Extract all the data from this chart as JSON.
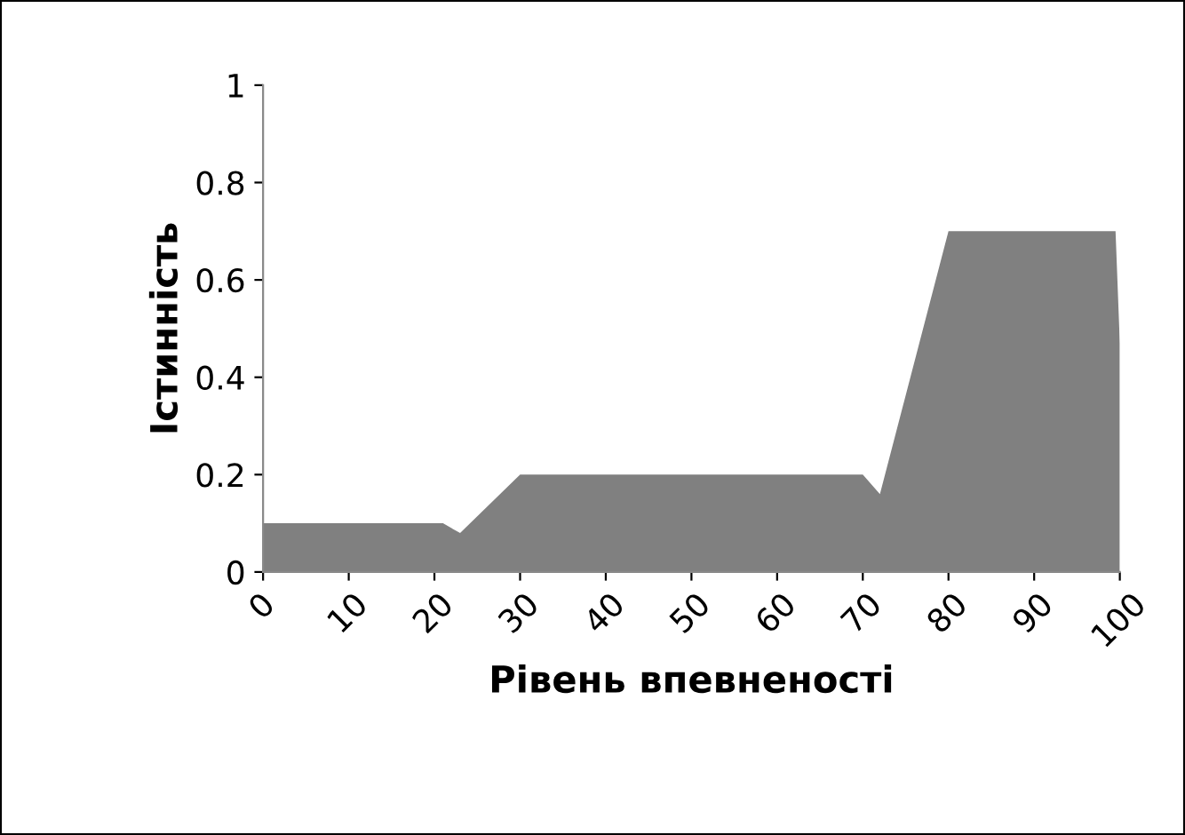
{
  "chart_data": {
    "type": "area",
    "xlabel": "Рівень впевненості",
    "ylabel": "Істинність",
    "x": [
      0,
      21,
      23,
      30,
      70,
      72,
      80,
      99.5,
      100
    ],
    "series": [
      {
        "color": "#808080",
        "values": [
          0.1,
          0.1,
          0.08,
          0.2,
          0.2,
          0.16,
          0.7,
          0.7,
          0.47
        ]
      }
    ],
    "xlim": [
      0,
      100
    ],
    "xticks": [
      0,
      10,
      20,
      30,
      40,
      50,
      60,
      70,
      80,
      90,
      100
    ],
    "ylim": [
      0,
      1
    ],
    "yticks": [
      0,
      0.2,
      0.4,
      0.6,
      0.8,
      1
    ],
    "grid": false,
    "legend": false
  }
}
